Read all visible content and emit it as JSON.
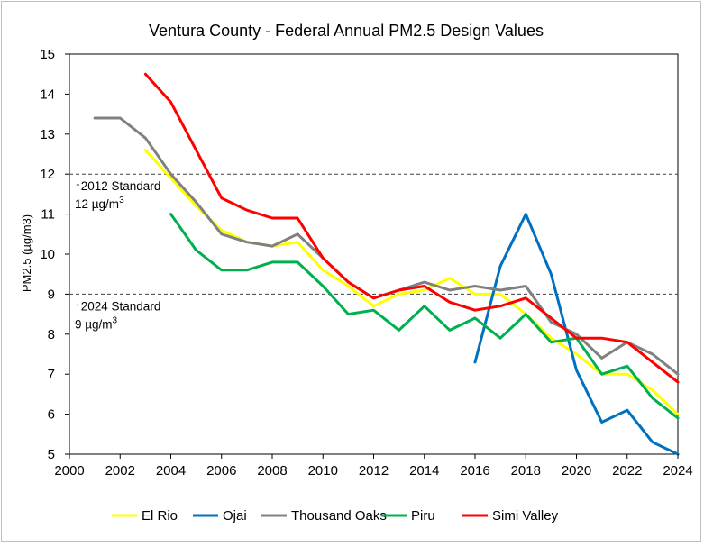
{
  "chart_data": {
    "type": "line",
    "title": "Ventura County - Federal Annual PM2.5 Design Values",
    "xlabel": "",
    "ylabel": "PM2.5 (µg/m3)",
    "xlim": [
      2000,
      2024
    ],
    "ylim": [
      5,
      15
    ],
    "x_ticks": [
      2000,
      2002,
      2004,
      2006,
      2008,
      2010,
      2012,
      2014,
      2016,
      2018,
      2020,
      2022,
      2024
    ],
    "y_ticks": [
      5,
      6,
      7,
      8,
      9,
      10,
      11,
      12,
      13,
      14,
      15
    ],
    "legend_position": "bottom",
    "series": [
      {
        "name": "El Rio",
        "color": "#ffff00",
        "x": [
          2003,
          2004,
          2005,
          2006,
          2007,
          2008,
          2009,
          2010,
          2011,
          2012,
          2013,
          2014,
          2015,
          2016,
          2017,
          2018,
          2019,
          2020,
          2021,
          2022,
          2023,
          2024
        ],
        "y": [
          12.6,
          11.9,
          11.2,
          10.6,
          10.3,
          10.2,
          10.3,
          9.6,
          9.2,
          8.7,
          9.0,
          9.1,
          9.4,
          9.0,
          9.0,
          8.5,
          7.9,
          7.5,
          7.0,
          7.0,
          6.6,
          6.0
        ]
      },
      {
        "name": "Ojai",
        "color": "#0070c0",
        "x": [
          2016,
          2017,
          2018,
          2019,
          2020,
          2021,
          2022,
          2023,
          2024
        ],
        "y": [
          7.3,
          9.7,
          11.0,
          9.5,
          7.1,
          5.8,
          6.1,
          5.3,
          5.0
        ]
      },
      {
        "name": "Thousand Oaks",
        "color": "#808080",
        "x": [
          2001,
          2002,
          2003,
          2004,
          2005,
          2006,
          2007,
          2008,
          2009,
          2010,
          2011,
          2012,
          2013,
          2014,
          2015,
          2016,
          2017,
          2018,
          2019,
          2020,
          2021,
          2022,
          2023,
          2024
        ],
        "y": [
          13.4,
          13.4,
          12.9,
          12.0,
          11.3,
          10.5,
          10.3,
          10.2,
          10.5,
          9.9,
          9.3,
          8.9,
          9.1,
          9.3,
          9.1,
          9.2,
          9.1,
          9.2,
          8.3,
          8.0,
          7.4,
          7.8,
          7.5,
          7.0
        ]
      },
      {
        "name": "Piru",
        "color": "#00b050",
        "x": [
          2004,
          2005,
          2006,
          2007,
          2008,
          2009,
          2010,
          2011,
          2012,
          2013,
          2014,
          2015,
          2016,
          2017,
          2018,
          2019,
          2020,
          2021,
          2022,
          2023,
          2024
        ],
        "y": [
          11.0,
          10.1,
          9.6,
          9.6,
          9.8,
          9.8,
          9.2,
          8.5,
          8.6,
          8.1,
          8.7,
          8.1,
          8.4,
          7.9,
          8.5,
          7.8,
          7.9,
          7.0,
          7.2,
          6.4,
          5.9
        ]
      },
      {
        "name": "Simi Valley",
        "color": "#ff0000",
        "x": [
          2003,
          2004,
          2005,
          2006,
          2007,
          2008,
          2009,
          2010,
          2011,
          2012,
          2013,
          2014,
          2015,
          2016,
          2017,
          2018,
          2019,
          2020,
          2021,
          2022,
          2023,
          2024
        ],
        "y": [
          14.5,
          13.8,
          12.6,
          11.4,
          11.1,
          10.9,
          10.9,
          9.9,
          9.3,
          8.9,
          9.1,
          9.2,
          8.8,
          8.6,
          8.7,
          8.9,
          8.4,
          7.9,
          7.9,
          7.8,
          7.3,
          6.8
        ]
      }
    ],
    "reference_lines": [
      {
        "value": 12,
        "label_line1": "2012 Standard",
        "label_line2": "12 µg/m",
        "sup": "3",
        "arrow": "↑"
      },
      {
        "value": 9,
        "label_line1": "2024 Standard",
        "label_line2": "9 µg/m",
        "sup": "3",
        "arrow": "↑"
      }
    ]
  }
}
